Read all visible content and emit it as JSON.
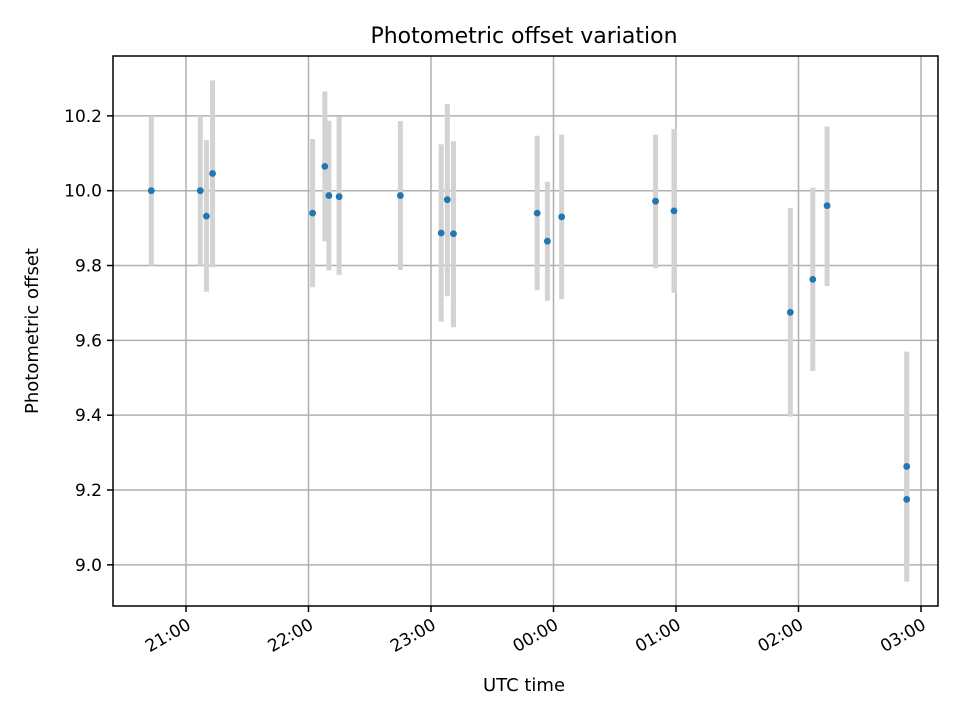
{
  "chart_data": {
    "type": "scatter",
    "title": "Photometric offset variation",
    "xlabel": "UTC time",
    "ylabel": "Photometric offset",
    "x_ticks": [
      "21:00",
      "22:00",
      "23:00",
      "00:00",
      "01:00",
      "02:00",
      "03:00"
    ],
    "y_ticks": [
      "9.0",
      "9.2",
      "9.4",
      "9.6",
      "9.8",
      "10.0",
      "10.2"
    ],
    "y_tick_values": [
      9.0,
      9.2,
      9.4,
      9.6,
      9.8,
      10.0,
      10.2
    ],
    "x_start": "20:43",
    "x_tick_times": [
      "21:00",
      "22:00",
      "23:00",
      "00:00",
      "01:00",
      "02:00",
      "03:00"
    ],
    "ylim": [
      8.89,
      10.36
    ],
    "grid": true,
    "colors": {
      "point": "#1f77b4",
      "errorbar": "#d3d3d3",
      "grid": "#b0b0b0",
      "axis": "#000000"
    },
    "points": [
      {
        "x": "20:43",
        "y": 10.0,
        "yerr_low": 9.8,
        "yerr_high": 10.2
      },
      {
        "x": "21:07",
        "y": 10.0,
        "yerr_low": 9.8,
        "yerr_high": 10.2
      },
      {
        "x": "21:10",
        "y": 9.932,
        "yerr_low": 9.73,
        "yerr_high": 10.135
      },
      {
        "x": "21:13",
        "y": 10.046,
        "yerr_low": 9.795,
        "yerr_high": 10.295
      },
      {
        "x": "22:02",
        "y": 9.94,
        "yerr_low": 9.742,
        "yerr_high": 10.138
      },
      {
        "x": "22:08",
        "y": 10.065,
        "yerr_low": 9.865,
        "yerr_high": 10.265
      },
      {
        "x": "22:10",
        "y": 9.987,
        "yerr_low": 9.787,
        "yerr_high": 10.187
      },
      {
        "x": "22:15",
        "y": 9.984,
        "yerr_low": 9.775,
        "yerr_high": 10.198
      },
      {
        "x": "22:45",
        "y": 9.987,
        "yerr_low": 9.788,
        "yerr_high": 10.186
      },
      {
        "x": "23:05",
        "y": 9.887,
        "yerr_low": 9.65,
        "yerr_high": 10.124
      },
      {
        "x": "23:08",
        "y": 9.976,
        "yerr_low": 9.718,
        "yerr_high": 10.232
      },
      {
        "x": "23:11",
        "y": 9.885,
        "yerr_low": 9.635,
        "yerr_high": 10.132
      },
      {
        "x": "23:52",
        "y": 9.94,
        "yerr_low": 9.734,
        "yerr_high": 10.147
      },
      {
        "x": "23:57",
        "y": 9.865,
        "yerr_low": 9.706,
        "yerr_high": 10.024
      },
      {
        "x": "00:04",
        "y": 9.93,
        "yerr_low": 9.71,
        "yerr_high": 10.15
      },
      {
        "x": "00:50",
        "y": 9.972,
        "yerr_low": 9.793,
        "yerr_high": 10.15
      },
      {
        "x": "00:59",
        "y": 9.946,
        "yerr_low": 9.727,
        "yerr_high": 10.165
      },
      {
        "x": "01:56",
        "y": 9.675,
        "yerr_low": 9.396,
        "yerr_high": 9.954
      },
      {
        "x": "02:07",
        "y": 9.763,
        "yerr_low": 9.518,
        "yerr_high": 10.008
      },
      {
        "x": "02:14",
        "y": 9.96,
        "yerr_low": 9.745,
        "yerr_high": 10.172
      },
      {
        "x": "02:53",
        "y": 9.263,
        "yerr_low": 9.0,
        "yerr_high": 9.57
      },
      {
        "x": "02:53",
        "y": 9.175,
        "yerr_low": 8.955,
        "yerr_high": 9.4
      }
    ]
  }
}
